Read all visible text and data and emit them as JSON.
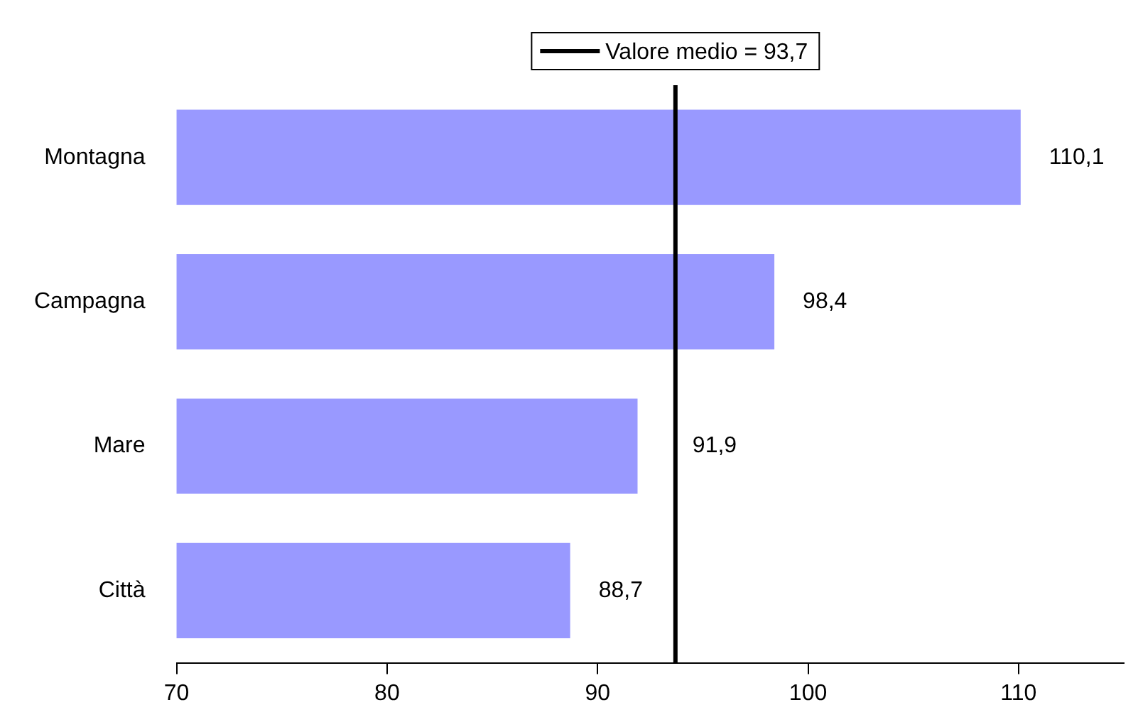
{
  "chart_data": {
    "type": "bar",
    "orientation": "horizontal",
    "categories": [
      "Montagna",
      "Campagna",
      "Mare",
      "Città"
    ],
    "values": [
      110.1,
      98.4,
      91.9,
      88.7
    ],
    "color": "#9999ff",
    "value_labels": [
      "110,1",
      "98,4",
      "91,9",
      "88,7"
    ],
    "xlim": [
      70,
      115
    ],
    "xticks": [
      70,
      80,
      90,
      100,
      110
    ],
    "grid": false,
    "ref_lines": [
      {
        "axis": "x",
        "value": 93.7,
        "label": "Valore medio = 93,7",
        "color": "#000000"
      }
    ]
  }
}
